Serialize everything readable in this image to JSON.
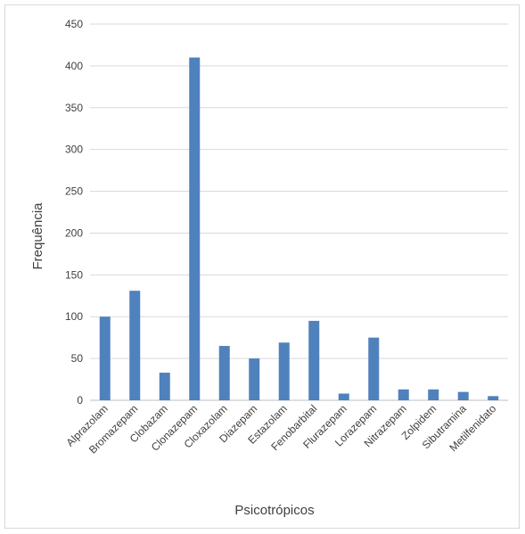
{
  "chart_data": {
    "type": "bar",
    "xlabel": "Psicotrópicos",
    "ylabel": "Frequência",
    "ylim": [
      0,
      450
    ],
    "yticks": [
      0,
      50,
      100,
      150,
      200,
      250,
      300,
      350,
      400,
      450
    ],
    "grid": "horizontal",
    "legend": "none",
    "bar_color": "#4f81bd",
    "grid_color": "#d9d9d9",
    "categories": [
      "Alprazolam",
      "Bromazepam",
      "Clobazam",
      "Clonazepam",
      "Cloxazolam",
      "Diazepam",
      "Estazolam",
      "Fenobarbital",
      "Flurazepam",
      "Lorazepam",
      "Nitrazepam",
      "Zolpidem",
      "Sibutramina",
      "Metilfenidato"
    ],
    "values": [
      100,
      131,
      33,
      410,
      65,
      50,
      69,
      95,
      8,
      75,
      13,
      13,
      10,
      5
    ]
  }
}
